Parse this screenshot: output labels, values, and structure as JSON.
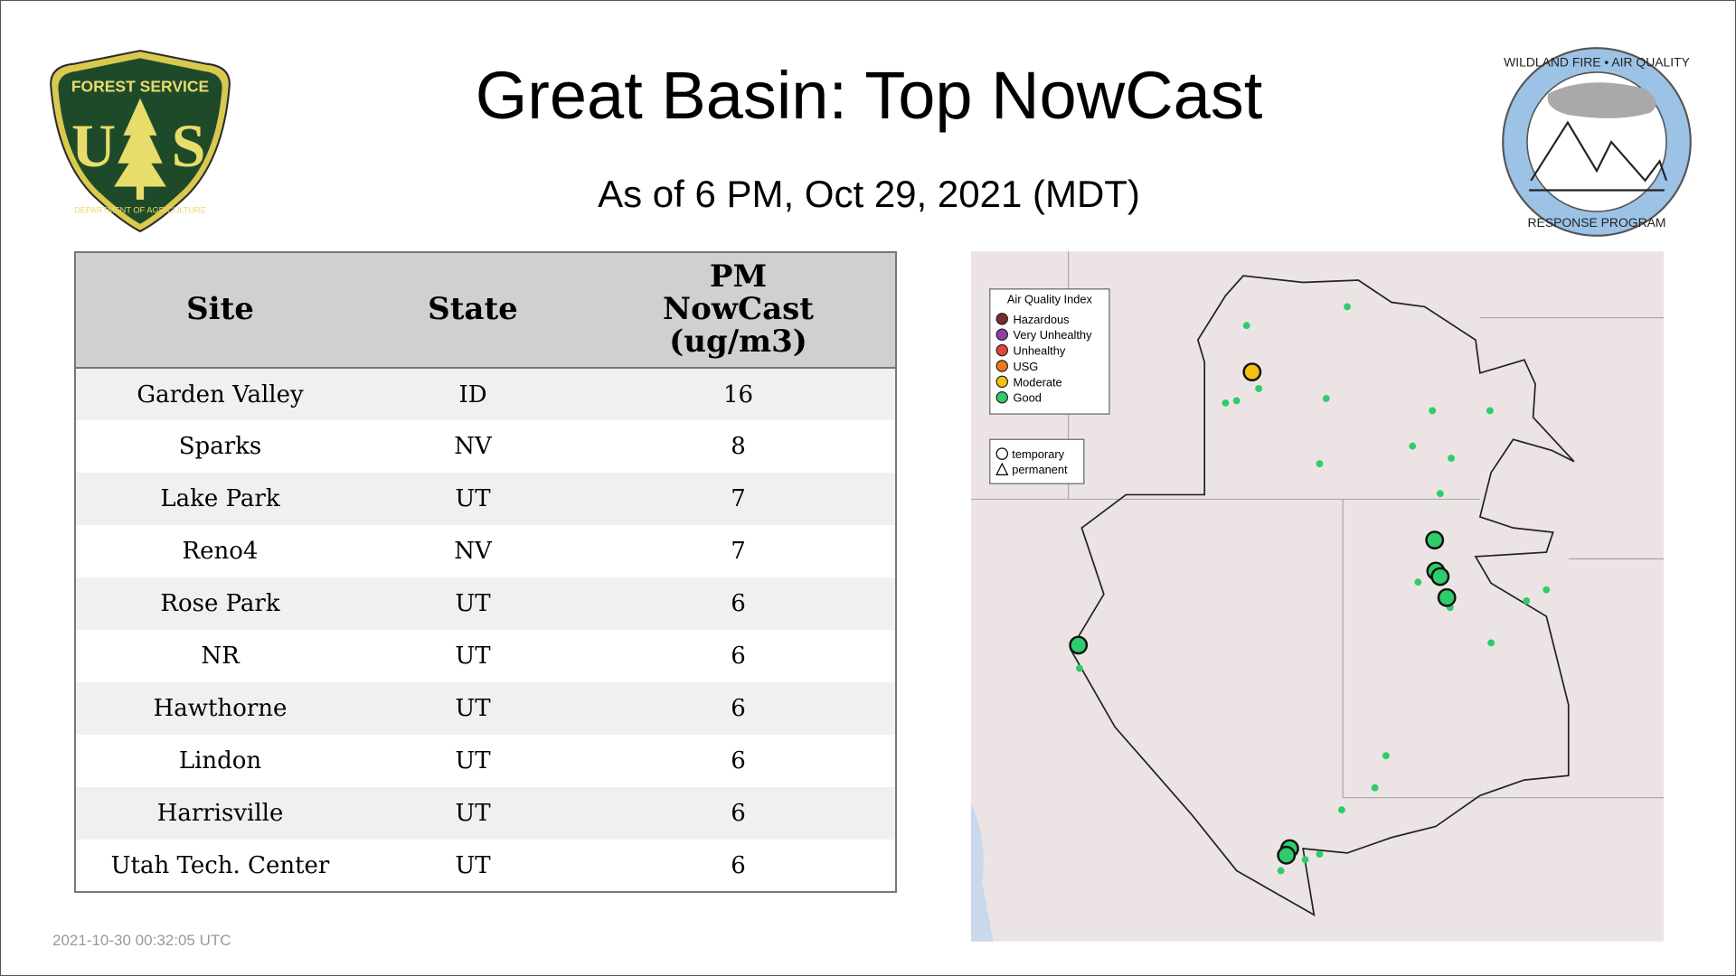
{
  "header": {
    "title": "Great Basin: Top NowCast",
    "subtitle": "As of  6 PM, Oct 29, 2021 (MDT)"
  },
  "logos": {
    "left": "FOREST SERVICE U S DEPARTMENT OF AGRICULTURE",
    "right": "WILDLAND FIRE • AIR QUALITY RESPONSE PROGRAM"
  },
  "table": {
    "columns": [
      "Site",
      "State",
      "PM NowCast (ug/m3)"
    ],
    "rows": [
      [
        "Garden Valley",
        "ID",
        "16"
      ],
      [
        "Sparks",
        "NV",
        "8"
      ],
      [
        "Lake Park",
        "UT",
        "7"
      ],
      [
        "Reno4",
        "NV",
        "7"
      ],
      [
        "Rose Park",
        "UT",
        "6"
      ],
      [
        "NR",
        "UT",
        "6"
      ],
      [
        "Hawthorne",
        "UT",
        "6"
      ],
      [
        "Lindon",
        "UT",
        "6"
      ],
      [
        "Harrisville",
        "UT",
        "6"
      ],
      [
        "Utah Tech. Center",
        "UT",
        "6"
      ]
    ]
  },
  "timestamp": "2021-10-30 00:32:05 UTC",
  "legend": {
    "title": "Air Quality Index",
    "items": [
      {
        "label": "Hazardous",
        "color": "#7e2b2b"
      },
      {
        "label": "Very Unhealthy",
        "color": "#8f3fa8"
      },
      {
        "label": "Unhealthy",
        "color": "#e8413a"
      },
      {
        "label": "USG",
        "color": "#ee7a1b"
      },
      {
        "label": "Moderate",
        "color": "#f2c20f"
      },
      {
        "label": "Good",
        "color": "#2ecc6a"
      }
    ],
    "shapes": [
      {
        "label": "temporary",
        "icon": "circle"
      },
      {
        "label": "permanent",
        "icon": "triangle"
      }
    ]
  }
}
